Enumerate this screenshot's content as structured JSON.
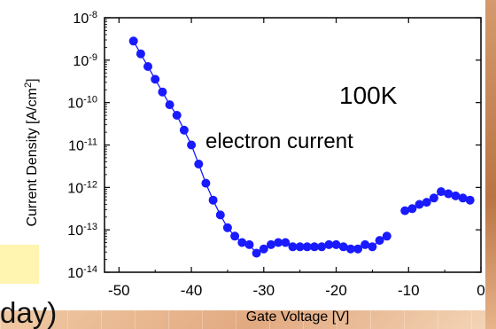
{
  "chart_data": {
    "type": "scatter",
    "title": "",
    "xlabel": "Gate Voltage [V]",
    "ylabel": "Current Density [A/cm2]",
    "ylabel_main": "Current Density [A/cm",
    "ylabel_sup": "2",
    "ylabel_tail": "]",
    "xlim": [
      -52,
      0
    ],
    "ylim_exp": [
      -14,
      -8
    ],
    "y_scale": "log",
    "grid": false,
    "x_ticks": [
      "-50",
      "-40",
      "-30",
      "-20",
      "-10",
      "0"
    ],
    "y_ticks": [
      {
        "base": "10",
        "exp": "-8"
      },
      {
        "base": "10",
        "exp": "-9"
      },
      {
        "base": "10",
        "exp": "-10"
      },
      {
        "base": "10",
        "exp": "-11"
      },
      {
        "base": "10",
        "exp": "-12"
      },
      {
        "base": "10",
        "exp": "-13"
      },
      {
        "base": "10",
        "exp": "-14"
      }
    ],
    "annotations": [
      "100K",
      "electron current"
    ],
    "series": [
      {
        "color": "#1a1aff",
        "segments": [
          [
            [
              -48,
              -8.55
            ],
            [
              -47,
              -8.85
            ],
            [
              -46,
              -9.15
            ],
            [
              -45,
              -9.45
            ],
            [
              -44,
              -9.75
            ],
            [
              -43,
              -10.05
            ],
            [
              -42,
              -10.3
            ],
            [
              -41,
              -10.65
            ],
            [
              -40,
              -11.0
            ],
            [
              -39,
              -11.45
            ],
            [
              -38,
              -11.9
            ],
            [
              -37,
              -12.3
            ],
            [
              -36,
              -12.65
            ],
            [
              -35,
              -12.95
            ],
            [
              -34,
              -13.15
            ],
            [
              -33,
              -13.3
            ],
            [
              -32,
              -13.35
            ],
            [
              -31,
              -13.55
            ],
            [
              -30,
              -13.45
            ],
            [
              -29,
              -13.35
            ],
            [
              -28,
              -13.3
            ],
            [
              -27,
              -13.3
            ],
            [
              -26,
              -13.4
            ],
            [
              -25,
              -13.4
            ],
            [
              -24,
              -13.4
            ],
            [
              -23,
              -13.4
            ],
            [
              -22,
              -13.4
            ],
            [
              -21,
              -13.35
            ],
            [
              -20,
              -13.35
            ],
            [
              -19,
              -13.4
            ],
            [
              -18,
              -13.45
            ],
            [
              -17,
              -13.45
            ],
            [
              -16,
              -13.35
            ],
            [
              -15,
              -13.4
            ],
            [
              -14,
              -13.25
            ],
            [
              -13,
              -13.15
            ]
          ],
          [
            [
              -10.5,
              -12.55
            ],
            [
              -9.5,
              -12.5
            ],
            [
              -8.5,
              -12.4
            ],
            [
              -7.5,
              -12.35
            ],
            [
              -6.5,
              -12.25
            ],
            [
              -5.5,
              -12.1
            ],
            [
              -4.5,
              -12.15
            ],
            [
              -3.5,
              -12.2
            ],
            [
              -2.5,
              -12.25
            ],
            [
              -1.5,
              -12.3
            ]
          ]
        ]
      }
    ]
  }
}
